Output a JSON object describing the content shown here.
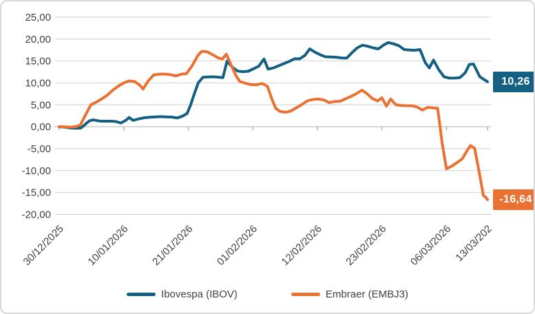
{
  "chart_data": {
    "type": "line",
    "title": "",
    "grid": "horizontal",
    "legend_position": "bottom",
    "x_axis": {
      "total_days": 73,
      "tick_days": [
        0,
        11,
        22,
        33,
        44,
        55,
        66,
        73
      ],
      "tick_labels": [
        "30/12/2025",
        "10/01/2026",
        "21/01/2026",
        "01/02/2026",
        "12/02/2026",
        "23/02/2026",
        "06/03/2026",
        "13/03/202"
      ]
    },
    "y_axis": {
      "min": -20,
      "max": 25,
      "tick_values": [
        25,
        20,
        15,
        10,
        5,
        0,
        -5,
        -10,
        -15,
        -20
      ],
      "tick_labels": [
        "25,00",
        "20,00",
        "15,00",
        "10,00",
        "5,00",
        "0,00",
        "-5,00",
        "-10,00",
        "-15,00",
        "-20,00"
      ]
    },
    "colors": {
      "grid": "#D9D9D9",
      "axis": "#BFBFBF",
      "tick": "#A6A6A6",
      "text": "#404040"
    },
    "series": [
      {
        "name": "Ibovespa (IBOV)",
        "color": "#156082",
        "end_label": "10,26",
        "end_value": 10.26,
        "points": [
          [
            0,
            0
          ],
          [
            0.9,
            -0.1
          ],
          [
            1.9,
            -0.3
          ],
          [
            2.8,
            -0.35
          ],
          [
            3.7,
            -0.3
          ],
          [
            4.4,
            0.5
          ],
          [
            5.1,
            1.3
          ],
          [
            5.8,
            1.55
          ],
          [
            6.8,
            1.3
          ],
          [
            7.7,
            1.25
          ],
          [
            8.6,
            1.25
          ],
          [
            9.6,
            1.2
          ],
          [
            10.5,
            0.85
          ],
          [
            11.4,
            1.5
          ],
          [
            11.9,
            2.1
          ],
          [
            12.6,
            1.45
          ],
          [
            13.6,
            1.8
          ],
          [
            14.5,
            2.05
          ],
          [
            15.4,
            2.15
          ],
          [
            16.4,
            2.25
          ],
          [
            17.3,
            2.3
          ],
          [
            18.2,
            2.25
          ],
          [
            19.2,
            2.2
          ],
          [
            20.1,
            2.0
          ],
          [
            21,
            2.4
          ],
          [
            21.8,
            3.0
          ],
          [
            22.4,
            5.0
          ],
          [
            23,
            7.4
          ],
          [
            23.7,
            10.0
          ],
          [
            24.5,
            11.3
          ],
          [
            25.4,
            11.35
          ],
          [
            26.3,
            11.4
          ],
          [
            27.2,
            11.3
          ],
          [
            27.9,
            11.2
          ],
          [
            28.6,
            14.95
          ],
          [
            29.5,
            13.6
          ],
          [
            30.4,
            12.7
          ],
          [
            31.3,
            12.55
          ],
          [
            32.2,
            12.65
          ],
          [
            33.1,
            13.2
          ],
          [
            34,
            13.8
          ],
          [
            34.9,
            15.45
          ],
          [
            35.6,
            13.15
          ],
          [
            36.5,
            13.4
          ],
          [
            37.4,
            13.9
          ],
          [
            38.3,
            14.4
          ],
          [
            39.2,
            14.9
          ],
          [
            40.1,
            15.5
          ],
          [
            41,
            15.5
          ],
          [
            41.9,
            16.3
          ],
          [
            42.7,
            17.75
          ],
          [
            43.6,
            17.0
          ],
          [
            44.5,
            16.4
          ],
          [
            45.4,
            15.95
          ],
          [
            46.3,
            15.9
          ],
          [
            47.2,
            15.85
          ],
          [
            48.1,
            15.7
          ],
          [
            49,
            15.65
          ],
          [
            49.9,
            16.9
          ],
          [
            50.8,
            18.0
          ],
          [
            51.7,
            18.6
          ],
          [
            52.6,
            18.35
          ],
          [
            53.5,
            18.0
          ],
          [
            54.4,
            17.75
          ],
          [
            55.3,
            18.65
          ],
          [
            56.1,
            19.2
          ],
          [
            57,
            18.9
          ],
          [
            57.9,
            18.5
          ],
          [
            58.8,
            17.6
          ],
          [
            59.7,
            17.5
          ],
          [
            60.6,
            17.45
          ],
          [
            61.5,
            17.6
          ],
          [
            62.4,
            14.6
          ],
          [
            63.1,
            13.4
          ],
          [
            63.8,
            15.2
          ],
          [
            64.7,
            13.0
          ],
          [
            65.6,
            11.4
          ],
          [
            66.5,
            11.1
          ],
          [
            67.4,
            11.1
          ],
          [
            68.3,
            11.2
          ],
          [
            69.2,
            12.3
          ],
          [
            69.9,
            14.2
          ],
          [
            70.6,
            14.3
          ],
          [
            71.7,
            11.4
          ],
          [
            73,
            10.26
          ]
        ]
      },
      {
        "name": "Embraer (EMBJ3)",
        "color": "#E97132",
        "end_label": "-16,64",
        "end_value": -16.64,
        "points": [
          [
            0,
            0
          ],
          [
            0.9,
            -0.05
          ],
          [
            1.9,
            -0.1
          ],
          [
            2.8,
            0
          ],
          [
            3.6,
            0.4
          ],
          [
            4.4,
            2.5
          ],
          [
            5.4,
            5.0
          ],
          [
            6.3,
            5.6
          ],
          [
            7.2,
            6.3
          ],
          [
            8.2,
            7.2
          ],
          [
            9.1,
            8.3
          ],
          [
            10,
            9.2
          ],
          [
            11,
            10.0
          ],
          [
            11.9,
            10.45
          ],
          [
            12.9,
            10.3
          ],
          [
            13.8,
            9.4
          ],
          [
            14.3,
            8.6
          ],
          [
            15.2,
            10.5
          ],
          [
            16.1,
            11.8
          ],
          [
            17.1,
            12.0
          ],
          [
            18,
            12.0
          ],
          [
            18.9,
            11.9
          ],
          [
            19.9,
            11.6
          ],
          [
            20.8,
            12.0
          ],
          [
            21.7,
            12.1
          ],
          [
            22.7,
            14.0
          ],
          [
            23.6,
            16.2
          ],
          [
            24.3,
            17.2
          ],
          [
            25.2,
            17.1
          ],
          [
            26.2,
            16.4
          ],
          [
            27.1,
            15.7
          ],
          [
            27.8,
            15.45
          ],
          [
            28.5,
            16.55
          ],
          [
            29.4,
            13.8
          ],
          [
            30.1,
            11.7
          ],
          [
            30.8,
            10.3
          ],
          [
            31.8,
            9.9
          ],
          [
            32.7,
            9.6
          ],
          [
            33.6,
            9.55
          ],
          [
            34.6,
            9.85
          ],
          [
            35.5,
            9.2
          ],
          [
            36.2,
            6.5
          ],
          [
            36.9,
            4.2
          ],
          [
            37.6,
            3.5
          ],
          [
            38.6,
            3.3
          ],
          [
            39.5,
            3.6
          ],
          [
            40.4,
            4.3
          ],
          [
            41.4,
            5.1
          ],
          [
            42.3,
            5.9
          ],
          [
            43.2,
            6.2
          ],
          [
            44.2,
            6.3
          ],
          [
            45.1,
            6.1
          ],
          [
            46,
            5.5
          ],
          [
            46.9,
            5.75
          ],
          [
            47.8,
            5.8
          ],
          [
            48.7,
            6.3
          ],
          [
            49.7,
            6.9
          ],
          [
            50.6,
            7.5
          ],
          [
            51.6,
            8.35
          ],
          [
            52.5,
            7.5
          ],
          [
            53.4,
            6.4
          ],
          [
            54.3,
            5.9
          ],
          [
            55,
            6.6
          ],
          [
            55.8,
            4.7
          ],
          [
            56.5,
            6.3
          ],
          [
            57.4,
            5.0
          ],
          [
            58.3,
            4.85
          ],
          [
            59.2,
            4.8
          ],
          [
            60.1,
            4.8
          ],
          [
            61,
            4.5
          ],
          [
            61.9,
            3.8
          ],
          [
            62.8,
            4.4
          ],
          [
            63.7,
            4.3
          ],
          [
            64.5,
            4.2
          ],
          [
            65.3,
            -4.0
          ],
          [
            66,
            -9.6
          ],
          [
            66.9,
            -9.0
          ],
          [
            67.8,
            -8.2
          ],
          [
            68.7,
            -7.3
          ],
          [
            69.6,
            -5.3
          ],
          [
            70.1,
            -4.3
          ],
          [
            70.8,
            -4.9
          ],
          [
            71.6,
            -10.5
          ],
          [
            72.3,
            -15.7
          ],
          [
            72.7,
            -16.1
          ],
          [
            73,
            -16.64
          ]
        ]
      }
    ]
  }
}
